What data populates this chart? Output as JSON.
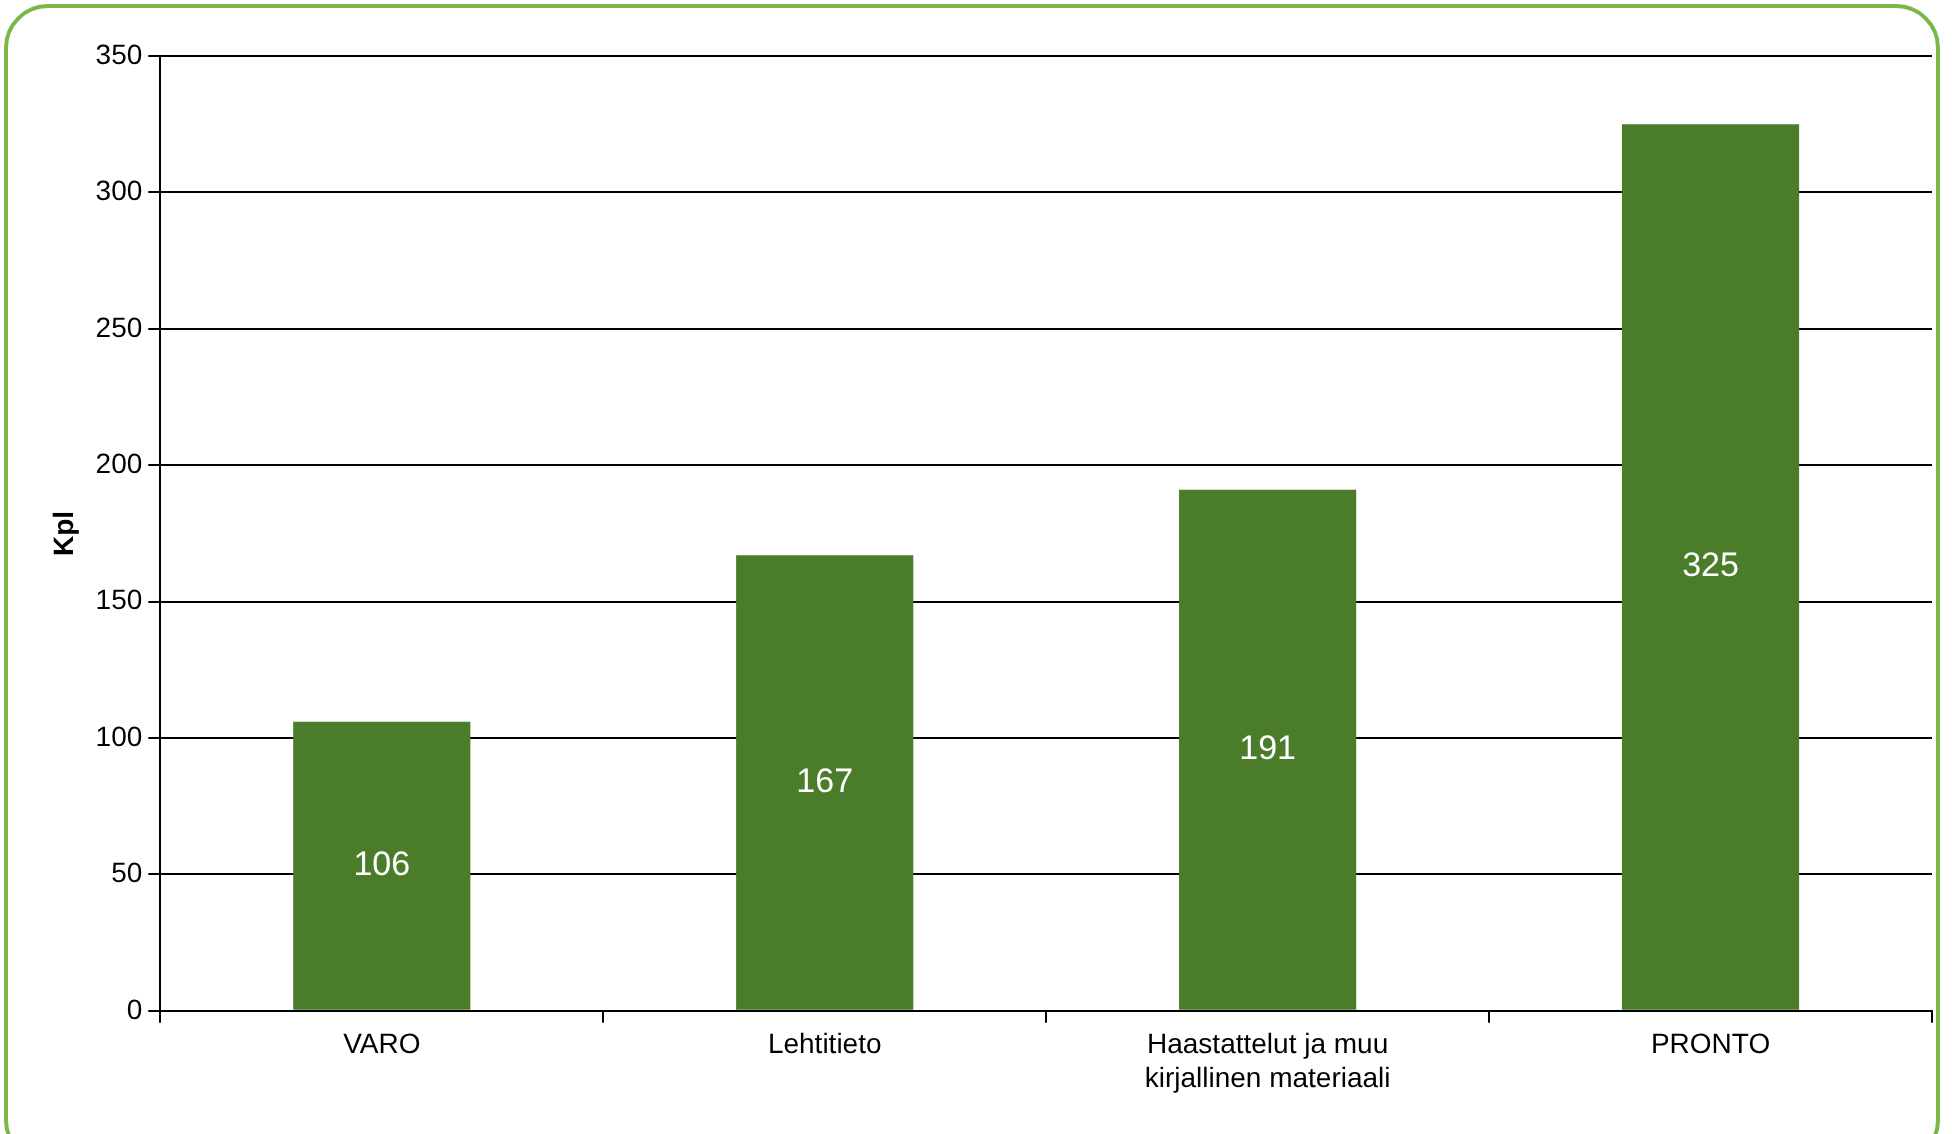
{
  "chart_data": {
    "type": "bar",
    "ylabel": "Kpl",
    "categories": [
      "VARO",
      "Lehtitieto",
      "Haastattelut ja muu kirjallinen materiaali",
      "PRONTO"
    ],
    "values": [
      106,
      167,
      191,
      325
    ],
    "color": "#4a7c2a",
    "ylim": [
      0,
      350
    ],
    "yticks": [
      0,
      50,
      100,
      150,
      200,
      250,
      300,
      350
    ],
    "grid": "y",
    "data_labels": true,
    "legend": false
  }
}
